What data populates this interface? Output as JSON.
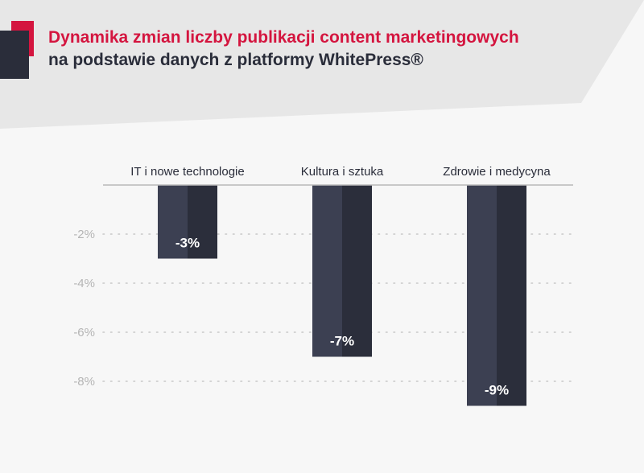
{
  "title": {
    "line1": "Dynamika zmian liczby publikacji content marketingowych",
    "line2": "na podstawie danych z platformy WhitePress®"
  },
  "colors": {
    "accent": "#d4153f",
    "dark": "#2a2d3a",
    "bar_light": "#3c4052",
    "bar_dark": "#2b2e3b",
    "background": "#f7f7f7",
    "header_shape": "#e7e7e7",
    "tick_text": "#b5b5b5",
    "grid": "#c8c8c8"
  },
  "chart_data": {
    "type": "bar",
    "categories": [
      "IT i nowe technologie",
      "Kultura i sztuka",
      "Zdrowie i medycyna"
    ],
    "values": [
      -3,
      -7,
      -9
    ],
    "data_labels": [
      "-3%",
      "-7%",
      "-9%"
    ],
    "yticks": [
      -2,
      -4,
      -6,
      -8
    ],
    "ytick_labels": [
      "-2%",
      "-4%",
      "-6%",
      "-8%"
    ],
    "ylim": [
      -9,
      0
    ],
    "unit": "%",
    "grid": true,
    "grid_style": "dotted",
    "category_labels_position": "top",
    "title": "Dynamika zmian liczby publikacji content marketingowych na podstawie danych z platformy WhitePress®",
    "xlabel": "",
    "ylabel": ""
  }
}
